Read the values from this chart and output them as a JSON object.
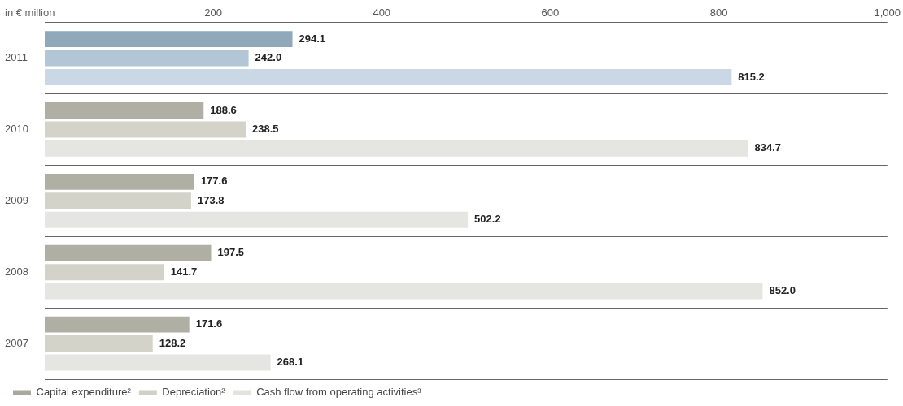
{
  "chart_data": {
    "type": "bar",
    "orientation": "horizontal",
    "xlabel": "in € million",
    "categories": [
      "2011",
      "2010",
      "2009",
      "2008",
      "2007"
    ],
    "series": [
      {
        "name": "Capital expenditure²",
        "color": "#a9a89c",
        "colors": [
          "#8fa9bb",
          "#b0afa3",
          "#b0afa3",
          "#b0afa3",
          "#b0afa3"
        ],
        "values": [
          294.1,
          188.6,
          177.6,
          197.5,
          171.6
        ],
        "value_labels": [
          "294.1",
          "188.6",
          "177.6",
          "197.5",
          "171.6"
        ]
      },
      {
        "name": "Depreciation²",
        "color": "#d0d0c6",
        "colors": [
          "#b3c6d6",
          "#d3d3ca",
          "#d3d3ca",
          "#d3d3ca",
          "#d3d3ca"
        ],
        "values": [
          242.0,
          238.5,
          173.8,
          141.7,
          128.2
        ],
        "value_labels": [
          "242.0",
          "238.5",
          "173.8",
          "141.7",
          "128.2"
        ]
      },
      {
        "name": "Cash flow from operating activities³",
        "color": "#e3e3de",
        "colors": [
          "#c9d8e4",
          "#e5e5e1",
          "#e5e5e1",
          "#e5e5e1",
          "#e5e5e1"
        ],
        "values": [
          815.2,
          834.7,
          502.2,
          852.0,
          268.1
        ],
        "value_labels": [
          "815.2",
          "834.7",
          "502.2",
          "852.0",
          "268.1"
        ]
      }
    ],
    "xlim": [
      0,
      1000
    ],
    "xticks": [
      200,
      400,
      600,
      800,
      {
        "value": 1000,
        "label": "1,000"
      }
    ],
    "grid": "y",
    "legend": "bottom left"
  }
}
